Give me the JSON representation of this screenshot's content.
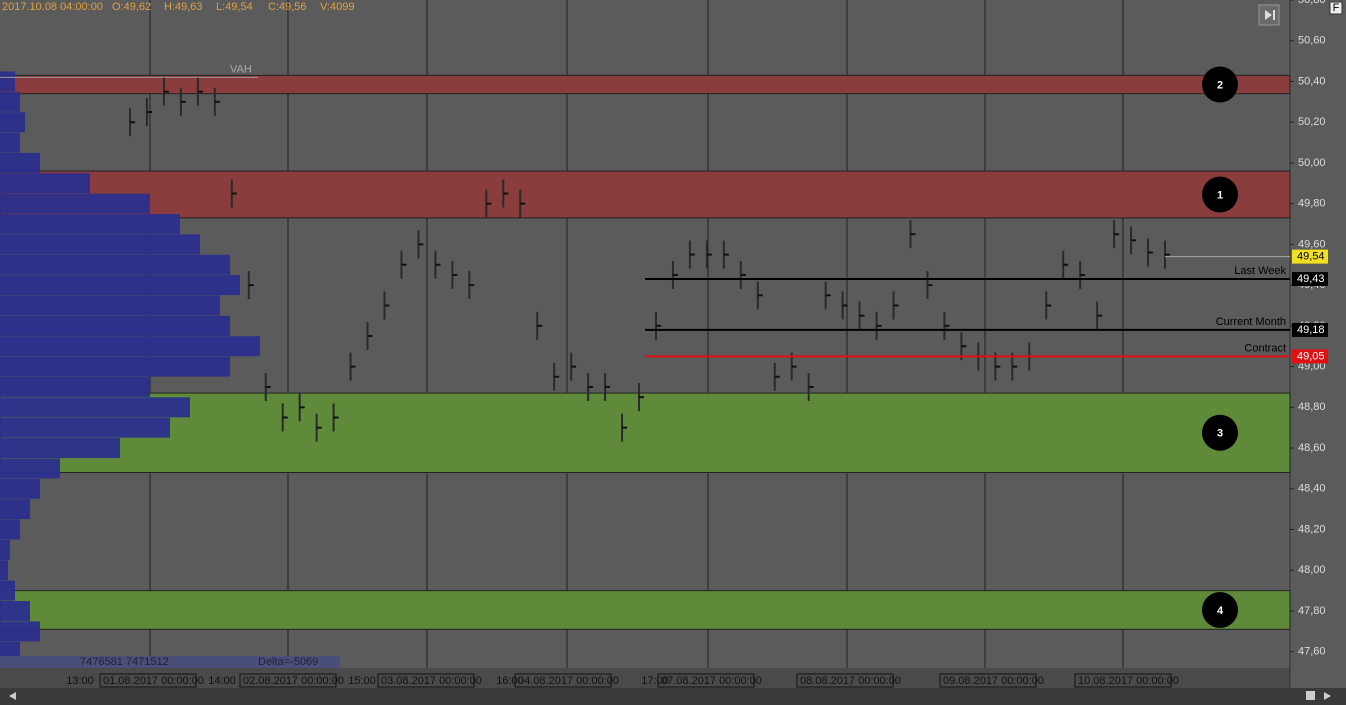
{
  "header": {
    "items": [
      "2017.10.08 04:00:00",
      "O:49,62",
      "H:49,63",
      "L:49,54",
      "C:49,56",
      "V:4099"
    ]
  },
  "chart_data": {
    "type": "bar",
    "ylim": [
      47.52,
      50.8
    ],
    "yticks": [
      {
        "value": 50.8,
        "label": "50,80"
      },
      {
        "value": 50.6,
        "label": "50,60"
      },
      {
        "value": 50.4,
        "label": "50,40"
      },
      {
        "value": 50.2,
        "label": "50,20"
      },
      {
        "value": 50.0,
        "label": "50,00"
      },
      {
        "value": 49.8,
        "label": "49,80"
      },
      {
        "value": 49.6,
        "label": "49,60"
      },
      {
        "value": 49.4,
        "label": "49,40"
      },
      {
        "value": 49.2,
        "label": "49,20"
      },
      {
        "value": 49.0,
        "label": "49,00"
      },
      {
        "value": 48.8,
        "label": "48,80"
      },
      {
        "value": 48.6,
        "label": "48,60"
      },
      {
        "value": 48.4,
        "label": "48,40"
      },
      {
        "value": 48.2,
        "label": "48,20"
      },
      {
        "value": 48.0,
        "label": "48,00"
      },
      {
        "value": 47.8,
        "label": "47,80"
      },
      {
        "value": 47.6,
        "label": "47,60"
      }
    ],
    "values": [
      50.2,
      50.25,
      50.35,
      50.3,
      50.35,
      50.3,
      49.85,
      49.4,
      48.9,
      48.75,
      48.8,
      48.7,
      48.75,
      49.0,
      49.15,
      49.3,
      49.5,
      49.6,
      49.5,
      49.45,
      49.4,
      49.8,
      49.85,
      49.8,
      49.2,
      48.95,
      49.0,
      48.9,
      48.9,
      48.7,
      48.85,
      49.2,
      49.45,
      49.55,
      49.55,
      49.55,
      49.45,
      49.35,
      48.95,
      49.0,
      48.9,
      49.35,
      49.3,
      49.25,
      49.2,
      49.3,
      49.65,
      49.4,
      49.2,
      49.1,
      49.05,
      49.0,
      49.0,
      49.05,
      49.3,
      49.5,
      49.45,
      49.25,
      49.65,
      49.62,
      49.56,
      49.55
    ],
    "color": "#2a2a2a",
    "profile": {
      "color": "#2b2f8c",
      "levels": [
        50.4,
        50.3,
        50.2,
        50.1,
        50.0,
        49.9,
        49.8,
        49.7,
        49.6,
        49.5,
        49.4,
        49.3,
        49.2,
        49.1,
        49.0,
        48.9,
        48.8,
        48.7,
        48.6,
        48.5,
        48.4,
        48.3,
        48.2,
        48.1,
        48.0,
        47.9,
        47.8,
        47.7,
        47.6
      ],
      "values": [
        15,
        20,
        25,
        20,
        40,
        90,
        150,
        180,
        200,
        230,
        240,
        220,
        230,
        260,
        230,
        150,
        190,
        170,
        120,
        60,
        40,
        30,
        20,
        10,
        8,
        15,
        30,
        40,
        20
      ]
    },
    "zones": [
      {
        "label": "2",
        "range": [
          50.34,
          50.43
        ],
        "color": "#8b3d3d"
      },
      {
        "label": "1",
        "range": [
          49.73,
          49.96
        ],
        "color": "#8b3d3d"
      },
      {
        "label": "3",
        "range": [
          48.48,
          48.87
        ],
        "color": "#5f8a3a"
      },
      {
        "label": "4",
        "range": [
          47.71,
          47.9
        ],
        "color": "#5f8a3a"
      }
    ],
    "vah": {
      "label": "VAH",
      "value": 50.42
    },
    "levels": [
      {
        "name": "Last Week",
        "value": 49.43,
        "value_label": "49,43",
        "color": "#000000"
      },
      {
        "name": "Current Month",
        "value": 49.18,
        "value_label": "49,18",
        "color": "#000000"
      },
      {
        "name": "Contract",
        "value": 49.05,
        "value_label": "49,05",
        "color": "#e01010"
      }
    ],
    "last_price": {
      "value": 49.54,
      "value_label": "49,54",
      "color": "#f0e020"
    },
    "time_labels": [
      "13:00",
      "14:00",
      "15:00",
      "16:00",
      "17:00"
    ],
    "date_labels": [
      "01.08.2017 00:00:00",
      "02.08.2017 00:00:00",
      "03.08.2017 00:00:00",
      "04.08.2017 00:00:00",
      "07.08.2017 00:00:00",
      "08.08.2017 00:00:00",
      "09.08.2017 00:00:00",
      "10.08.2017 00:00:00"
    ],
    "footer": {
      "volumes": "7476581 7471512",
      "delta": "Delta=-5069"
    }
  }
}
